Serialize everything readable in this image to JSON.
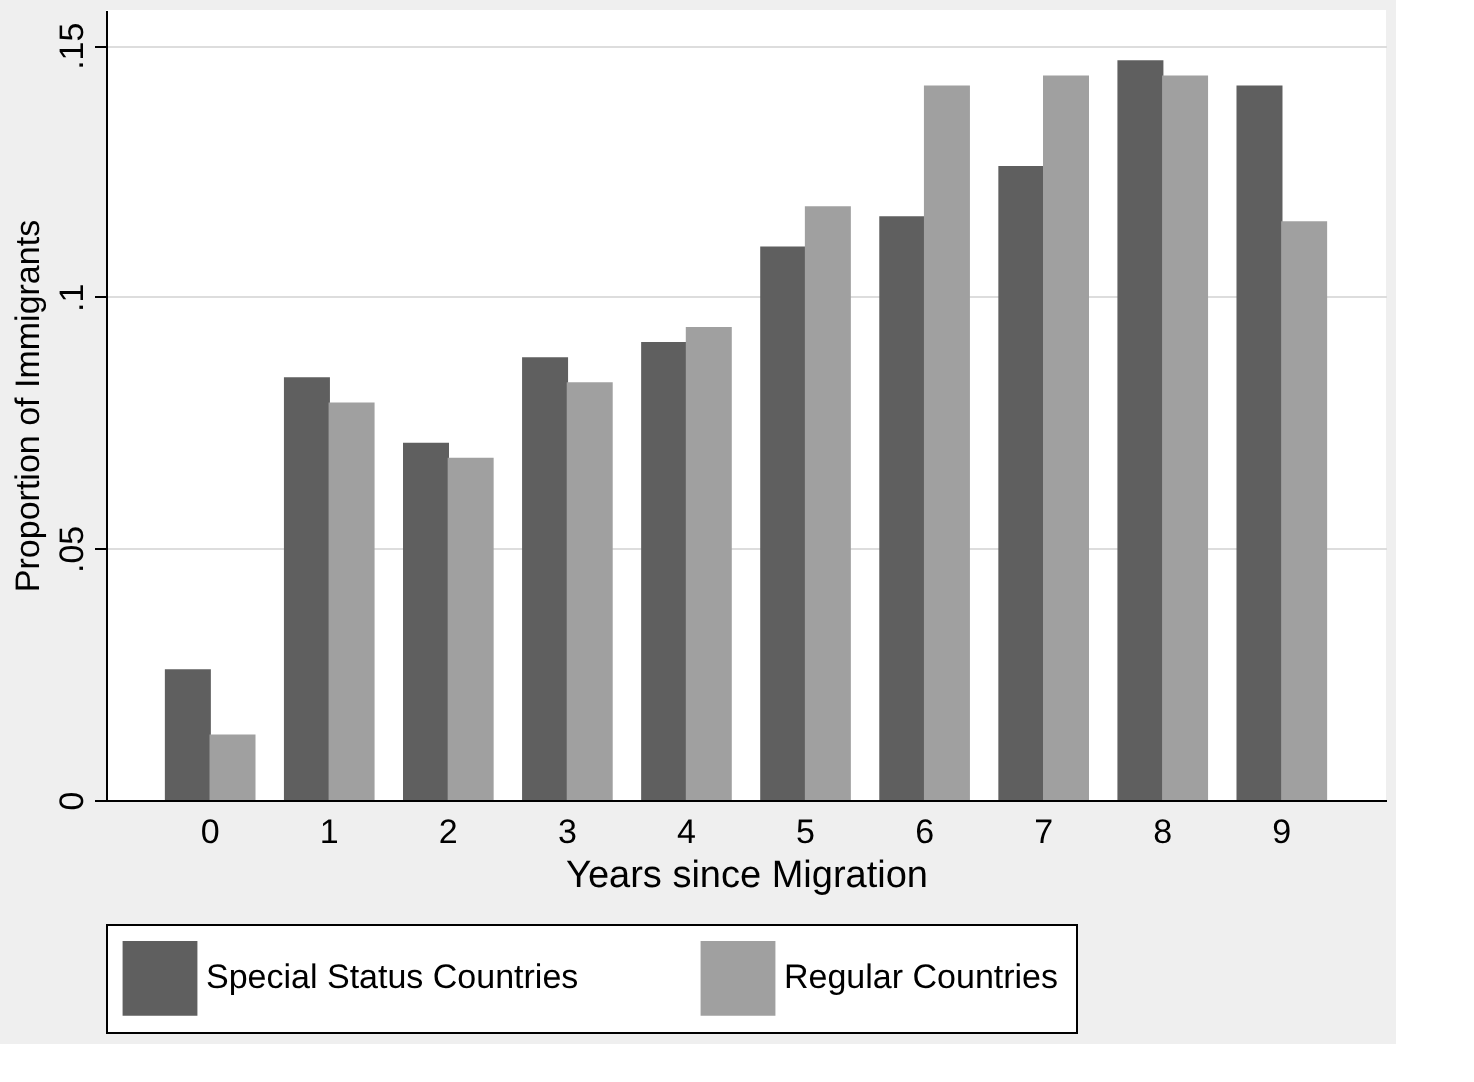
{
  "chart_data": {
    "type": "bar",
    "xlabel": "Years since Migration",
    "ylabel": "Proportion of Immigrants",
    "categories": [
      "0",
      "1",
      "2",
      "3",
      "4",
      "5",
      "6",
      "7",
      "8",
      "9"
    ],
    "series": [
      {
        "name": "Special Status Countries",
        "color": "#5f5f5f",
        "values": [
          0.026,
          0.084,
          0.071,
          0.088,
          0.091,
          0.11,
          0.116,
          0.126,
          0.147,
          0.142
        ]
      },
      {
        "name": "Regular Countries",
        "color": "#a0a0a0",
        "values": [
          0.013,
          0.079,
          0.068,
          0.083,
          0.094,
          0.118,
          0.142,
          0.144,
          0.144,
          0.115
        ]
      }
    ],
    "ylim": [
      0,
      0.157
    ],
    "yticks": [
      0,
      {
        "value": 0.05,
        "label": ".05"
      },
      {
        "value": 0.1,
        "label": ".1"
      },
      {
        "value": 0.15,
        "label": ".15"
      }
    ],
    "grid": "y",
    "legend": "bottom"
  }
}
